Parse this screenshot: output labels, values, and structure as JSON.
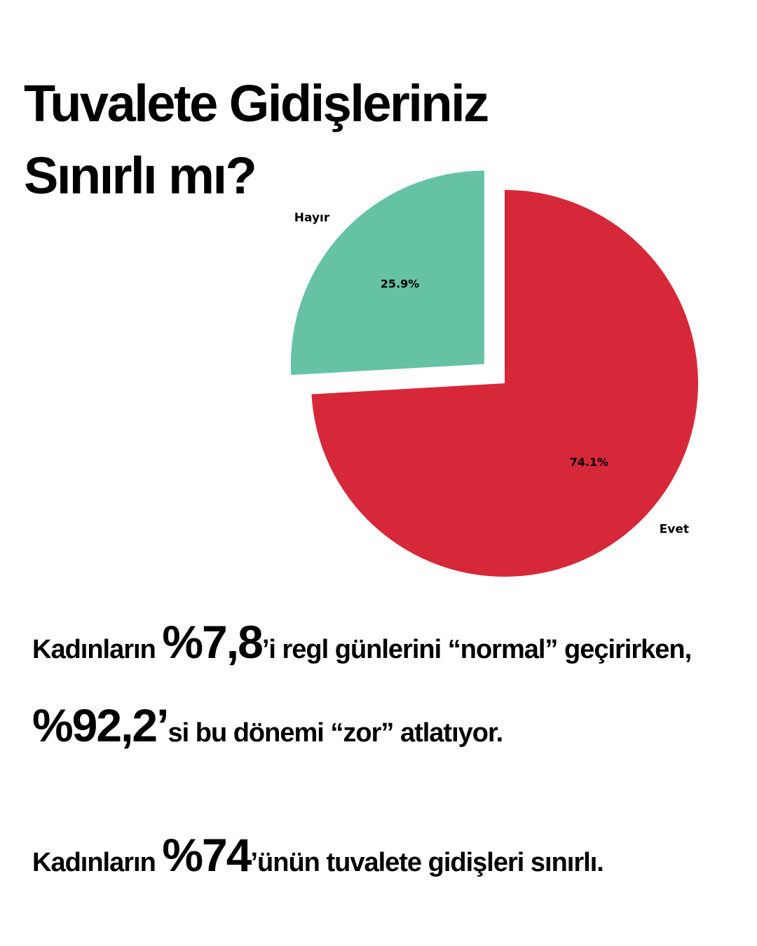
{
  "title": {
    "line1": "Tuvalete Gidişleriniz",
    "line2": "Sınırlı mı?"
  },
  "chart_data": {
    "type": "pie",
    "labels": [
      "Hayır",
      "Evet"
    ],
    "values": [
      25.9,
      74.1
    ],
    "value_labels": [
      "25.9%",
      "74.1%"
    ],
    "colors": [
      "#66c2a5",
      "#d62839"
    ],
    "exploded": [
      "Hayır"
    ]
  },
  "stats": {
    "s1_pre": "Kadınların ",
    "s1_big": "%7,8",
    "s1_mid": "’i regl günlerini “normal” geçirirken, ",
    "s1_big2": "%92,2’",
    "s1_post": "si bu dönemi “zor” atlatıyor.",
    "s2_pre": "Kadınların ",
    "s2_big": "%74",
    "s2_post": "’ünün tuvalete gidişleri sınırlı."
  }
}
